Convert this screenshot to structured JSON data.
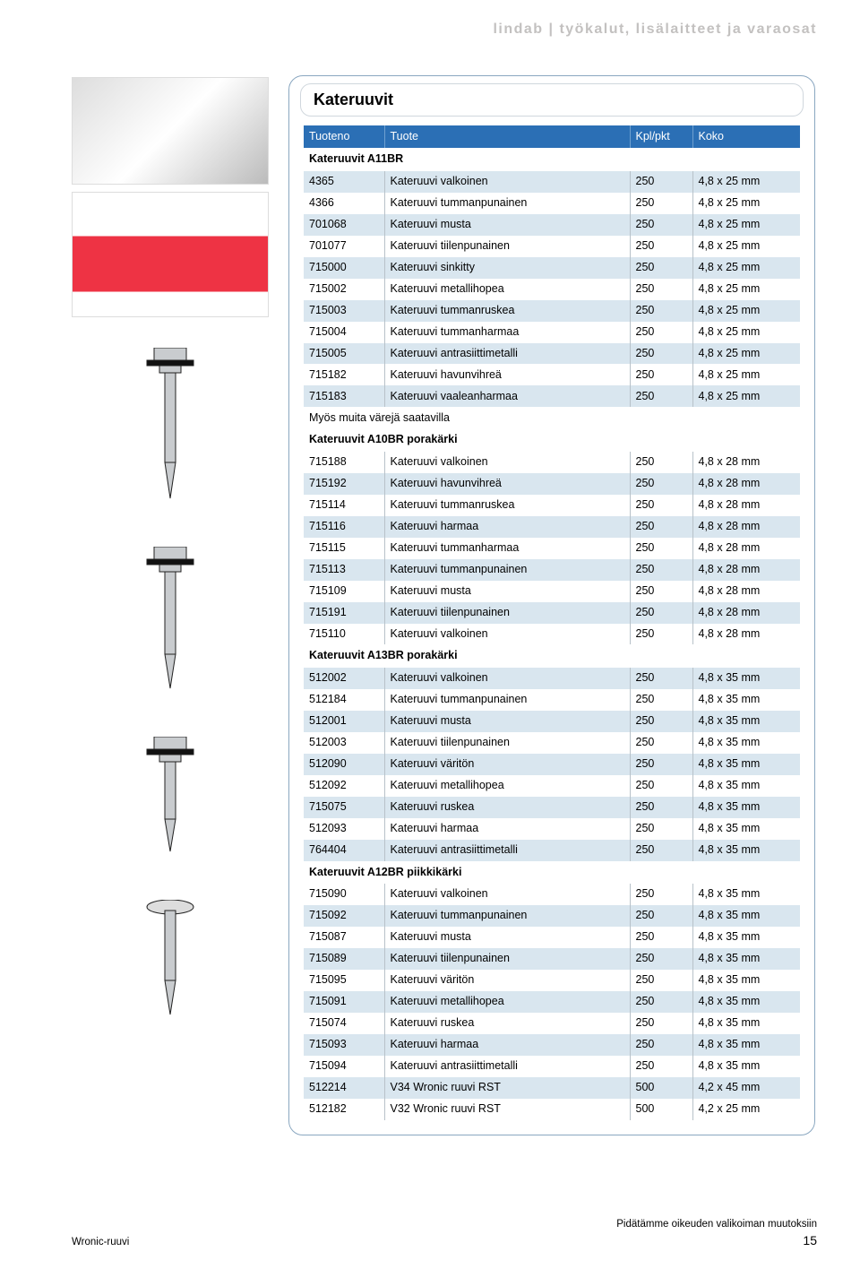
{
  "header": {
    "text": "lindab  |  työkalut, lisälaitteet ja varaosat"
  },
  "panel": {
    "title": "Kateruuvit"
  },
  "table": {
    "columns": [
      "Tuoteno",
      "Tuote",
      "Kpl/pkt",
      "Koko"
    ],
    "sections": [
      {
        "heading": "Kateruuvit A11BR",
        "rows": [
          [
            "4365",
            "Kateruuvi valkoinen",
            "250",
            "4,8 x 25 mm"
          ],
          [
            "4366",
            "Kateruuvi tummanpunainen",
            "250",
            "4,8 x 25 mm"
          ],
          [
            "701068",
            "Kateruuvi musta",
            "250",
            "4,8 x 25 mm"
          ],
          [
            "701077",
            "Kateruuvi tiilenpunainen",
            "250",
            "4,8 x 25 mm"
          ],
          [
            "715000",
            "Kateruuvi sinkitty",
            "250",
            "4,8 x 25 mm"
          ],
          [
            "715002",
            "Kateruuvi metallihopea",
            "250",
            "4,8 x 25 mm"
          ],
          [
            "715003",
            "Kateruuvi tummanruskea",
            "250",
            "4,8 x 25 mm"
          ],
          [
            "715004",
            "Kateruuvi tummanharmaa",
            "250",
            "4,8 x 25 mm"
          ],
          [
            "715005",
            "Kateruuvi antrasiittimetalli",
            "250",
            "4,8 x 25 mm"
          ],
          [
            "715182",
            "Kateruuvi havunvihreä",
            "250",
            "4,8 x 25 mm"
          ],
          [
            "715183",
            "Kateruuvi vaaleanharmaa",
            "250",
            "4,8 x 25 mm"
          ]
        ],
        "note": "Myös muita värejä saatavilla"
      },
      {
        "heading": "Kateruuvit A10BR porakärki",
        "rows": [
          [
            "715188",
            "Kateruuvi valkoinen",
            "250",
            "4,8 x 28 mm"
          ],
          [
            "715192",
            "Kateruuvi havunvihreä",
            "250",
            "4,8 x 28 mm"
          ],
          [
            "715114",
            "Kateruuvi tummanruskea",
            "250",
            "4,8 x 28 mm"
          ],
          [
            "715116",
            "Kateruuvi harmaa",
            "250",
            "4,8 x 28 mm"
          ],
          [
            "715115",
            "Kateruuvi tummanharmaa",
            "250",
            "4,8 x 28 mm"
          ],
          [
            "715113",
            "Kateruuvi tummanpunainen",
            "250",
            "4,8 x 28 mm"
          ],
          [
            "715109",
            "Kateruuvi musta",
            "250",
            "4,8 x 28 mm"
          ],
          [
            "715191",
            "Kateruuvi tiilenpunainen",
            "250",
            "4,8 x 28 mm"
          ],
          [
            "715110",
            "Kateruuvi valkoinen",
            "250",
            "4,8 x 28 mm"
          ]
        ]
      },
      {
        "heading": "Kateruuvit A13BR porakärki",
        "rows": [
          [
            "512002",
            "Kateruuvi valkoinen",
            "250",
            "4,8 x 35 mm"
          ],
          [
            "512184",
            "Kateruuvi tummanpunainen",
            "250",
            "4,8 x 35 mm"
          ],
          [
            "512001",
            "Kateruuvi musta",
            "250",
            "4,8 x 35 mm"
          ],
          [
            "512003",
            "Kateruuvi tiilenpunainen",
            "250",
            "4,8 x 35 mm"
          ],
          [
            "512090",
            "Kateruuvi väritön",
            "250",
            "4,8 x 35 mm"
          ],
          [
            "512092",
            "Kateruuvi metallihopea",
            "250",
            "4,8 x 35 mm"
          ],
          [
            "715075",
            "Kateruuvi ruskea",
            "250",
            "4,8 x 35 mm"
          ],
          [
            "512093",
            "Kateruuvi harmaa",
            "250",
            "4,8 x 35 mm"
          ],
          [
            "764404",
            "Kateruuvi antrasiittimetalli",
            "250",
            "4,8 x 35 mm"
          ]
        ]
      },
      {
        "heading": "Kateruuvit A12BR piikkikärki",
        "rows": [
          [
            "715090",
            "Kateruuvi valkoinen",
            "250",
            "4,8 x 35 mm"
          ],
          [
            "715092",
            "Kateruuvi tummanpunainen",
            "250",
            "4,8 x 35 mm"
          ],
          [
            "715087",
            "Kateruuvi musta",
            "250",
            "4,8 x 35 mm"
          ],
          [
            "715089",
            "Kateruuvi tiilenpunainen",
            "250",
            "4,8 x 35 mm"
          ],
          [
            "715095",
            "Kateruuvi väritön",
            "250",
            "4,8 x 35 mm"
          ],
          [
            "715091",
            "Kateruuvi metallihopea",
            "250",
            "4,8 x 35 mm"
          ],
          [
            "715074",
            "Kateruuvi ruskea",
            "250",
            "4,8 x 35 mm"
          ],
          [
            "715093",
            "Kateruuvi harmaa",
            "250",
            "4,8 x 35 mm"
          ],
          [
            "715094",
            "Kateruuvi antrasiittimetalli",
            "250",
            "4,8 x 35 mm"
          ],
          [
            "512214",
            "V34 Wronic ruuvi RST",
            "500",
            "4,2 x 45 mm"
          ],
          [
            "512182",
            "V32 Wronic ruuvi RST",
            "500",
            "4,2 x 25 mm"
          ]
        ]
      }
    ],
    "stripe_color": "#d9e6ef",
    "header_bg": "#2b6fb5",
    "header_fg": "#ffffff",
    "border_color": "#b8c2c9"
  },
  "footer": {
    "caption": "Wronic-ruuvi",
    "disclaimer": "Pidätämme oikeuden valikoiman muutoksiin",
    "page": "15"
  }
}
